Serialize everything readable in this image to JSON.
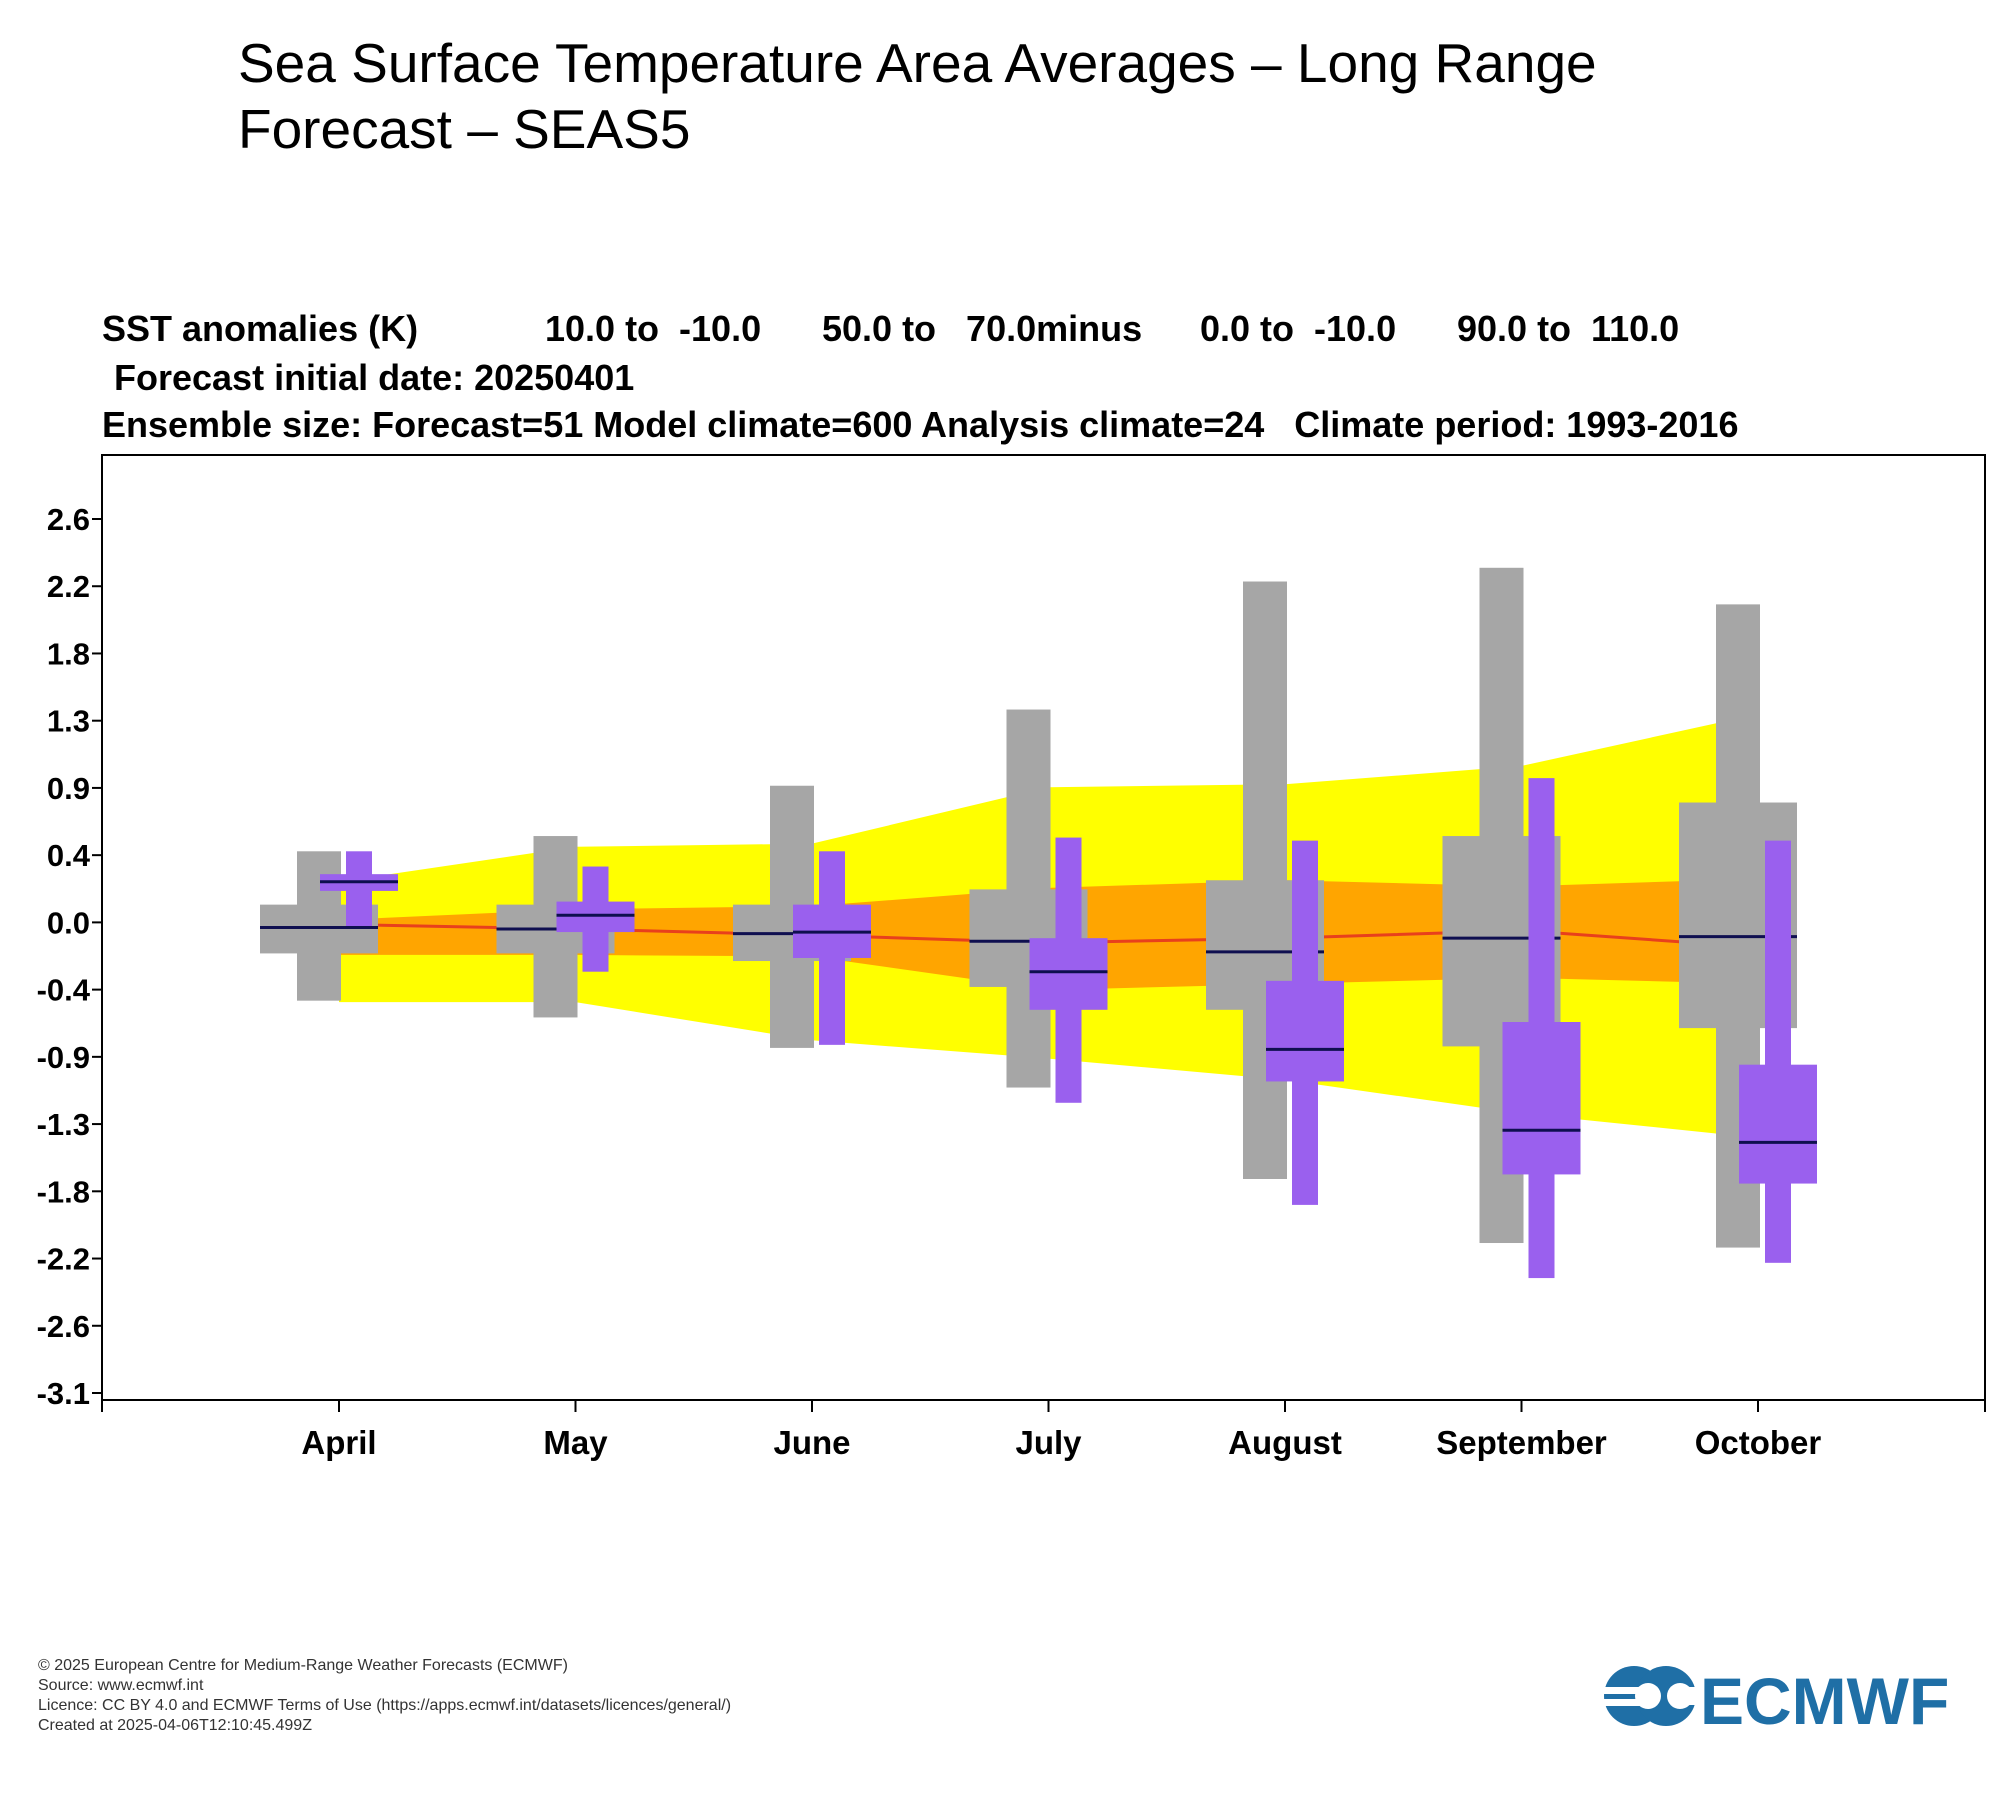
{
  "title": "Sea Surface Temperature Area Averages – Long Range Forecast – SEAS5",
  "header": {
    "line1": {
      "label": "SST anomalies (K)",
      "seg1": "10.0 to  -10.0",
      "seg2": "50.0 to   70.0minus",
      "seg3": "0.0 to  -10.0",
      "seg4": "90.0 to  110.0"
    },
    "line2": "Forecast initial date: 20250401",
    "line3": "Ensemble size: Forecast=51 Model climate=600 Analysis climate=24   Climate period: 1993-2016"
  },
  "chart_data": {
    "type": "box",
    "ylim": [
      -3.1,
      3.1
    ],
    "yticks": [
      "2.6",
      "2.2",
      "1.8",
      "1.3",
      "0.9",
      "0.4",
      "0.0",
      "-0.4",
      "-0.9",
      "-1.3",
      "-1.8",
      "-2.2",
      "-2.6",
      "-3.1"
    ],
    "categories": [
      "April",
      "May",
      "June",
      "July",
      "August",
      "September",
      "October"
    ],
    "climate_envelope": {
      "outer_upper": [
        0.3,
        0.53,
        0.55,
        0.92,
        0.94,
        1.06,
        1.4
      ],
      "outer_lower": [
        -0.49,
        -0.49,
        -0.74,
        -0.86,
        -1.0,
        -1.22,
        -1.38
      ],
      "inner_upper": [
        0.05,
        0.12,
        0.14,
        0.26,
        0.31,
        0.27,
        0.32
      ],
      "inner_lower": [
        -0.18,
        -0.18,
        -0.19,
        -0.41,
        -0.37,
        -0.33,
        -0.37
      ],
      "median": [
        0.02,
        -0.01,
        -0.05,
        -0.1,
        -0.07,
        -0.02,
        -0.13
      ]
    },
    "series": [
      {
        "name": "Model climate",
        "color": "#a6a6a6",
        "boxes": [
          {
            "whisker_low": -0.48,
            "box_low": -0.17,
            "median": 0.0,
            "box_high": 0.15,
            "whisker_high": 0.5
          },
          {
            "whisker_low": -0.59,
            "box_low": -0.17,
            "median": -0.01,
            "box_high": 0.15,
            "whisker_high": 0.6
          },
          {
            "whisker_low": -0.79,
            "box_low": -0.22,
            "median": -0.04,
            "box_high": 0.15,
            "whisker_high": 0.93
          },
          {
            "whisker_low": -1.05,
            "box_low": -0.39,
            "median": -0.09,
            "box_high": 0.25,
            "whisker_high": 1.43
          },
          {
            "whisker_low": -1.65,
            "box_low": -0.54,
            "median": -0.16,
            "box_high": 0.31,
            "whisker_high": 2.27
          },
          {
            "whisker_low": -2.07,
            "box_low": -0.78,
            "median": -0.07,
            "box_high": 0.6,
            "whisker_high": 2.36
          },
          {
            "whisker_low": -2.1,
            "box_low": -0.66,
            "median": -0.06,
            "box_high": 0.82,
            "whisker_high": 2.12
          }
        ]
      },
      {
        "name": "Forecast",
        "color": "#9a60ee",
        "boxes": [
          {
            "whisker_low": 0.01,
            "box_low": 0.24,
            "median": 0.3,
            "box_high": 0.35,
            "whisker_high": 0.5
          },
          {
            "whisker_low": -0.29,
            "box_low": -0.03,
            "median": 0.08,
            "box_high": 0.17,
            "whisker_high": 0.4
          },
          {
            "whisker_low": -0.77,
            "box_low": -0.2,
            "median": -0.03,
            "box_high": 0.15,
            "whisker_high": 0.5
          },
          {
            "whisker_low": -1.15,
            "box_low": -0.54,
            "median": -0.29,
            "box_high": -0.07,
            "whisker_high": 0.59
          },
          {
            "whisker_low": -1.82,
            "box_low": -1.01,
            "median": -0.8,
            "box_high": -0.35,
            "whisker_high": 0.57
          },
          {
            "whisker_low": -2.3,
            "box_low": -1.62,
            "median": -1.33,
            "box_high": -0.62,
            "whisker_high": 0.98
          },
          {
            "whisker_low": -2.2,
            "box_low": -1.68,
            "median": -1.41,
            "box_high": -0.9,
            "whisker_high": 0.57
          }
        ]
      }
    ],
    "colors": {
      "outer_envelope": "#ffff00",
      "inner_envelope": "#ffa500",
      "median_line": "#e8401c",
      "median_tick": "#0f0f50"
    },
    "grid": false
  },
  "footer": {
    "line1": "© 2025 European Centre for Medium-Range Weather Forecasts (ECMWF)",
    "line2": "Source: www.ecmwf.int",
    "line3": "Licence: CC BY 4.0 and ECMWF Terms of Use (https://apps.ecmwf.int/datasets/licences/general/)",
    "line4": "Created at 2025-04-06T12:10:45.499Z"
  },
  "logo": {
    "text": "ECMWF",
    "color": "#1f6fa6"
  }
}
